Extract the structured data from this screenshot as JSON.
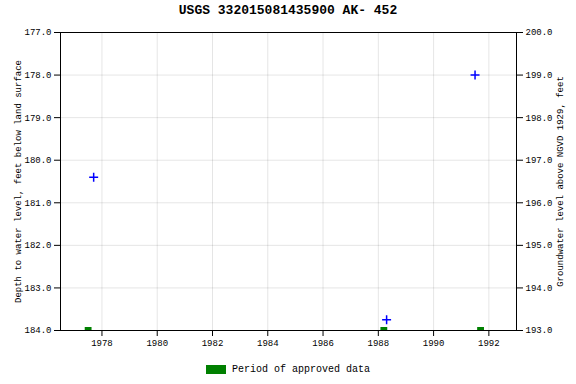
{
  "chart_data": {
    "type": "scatter",
    "title": "USGS 332015081435900 AK- 452",
    "ylabel": "Depth to water level, feet below land surface",
    "y2label": "Groundwater level above NGVD 1929, feet",
    "xlim": [
      1976.5,
      1993.0
    ],
    "xticks": [
      1978,
      1980,
      1982,
      1984,
      1986,
      1988,
      1990,
      1992
    ],
    "ylim": [
      184.0,
      177.0
    ],
    "yticks": [
      {
        "value": 177.0,
        "label": "177.0"
      },
      {
        "value": 178.0,
        "label": "178.0"
      },
      {
        "value": 179.0,
        "label": "179.0"
      },
      {
        "value": 180.0,
        "label": "180.0"
      },
      {
        "value": 181.0,
        "label": "181.0"
      },
      {
        "value": 182.0,
        "label": "182.0"
      },
      {
        "value": 183.0,
        "label": "183.0"
      },
      {
        "value": 184.0,
        "label": "184.0"
      }
    ],
    "y2lim": [
      193.0,
      200.0
    ],
    "y2ticks": [
      {
        "value": 200.0,
        "label": "200.0"
      },
      {
        "value": 199.0,
        "label": "199.0"
      },
      {
        "value": 198.0,
        "label": "198.0"
      },
      {
        "value": 197.0,
        "label": "197.0"
      },
      {
        "value": 196.0,
        "label": "196.0"
      },
      {
        "value": 195.0,
        "label": "195.0"
      },
      {
        "value": 194.0,
        "label": "194.0"
      },
      {
        "value": 193.0,
        "label": "193.0"
      }
    ],
    "grid": true,
    "legend": "bottom",
    "series": [
      {
        "color": "blue",
        "marker": "plus",
        "x": [
          1977.7,
          1991.5,
          1988.3
        ],
        "values": [
          180.4,
          178.0,
          183.75
        ]
      },
      {
        "name": "Period of approved data",
        "color": "#008000",
        "marker": "square",
        "x": [
          1977.5,
          1988.2,
          1991.7
        ],
        "values": [
          184.0,
          184.0,
          184.0
        ]
      }
    ]
  }
}
